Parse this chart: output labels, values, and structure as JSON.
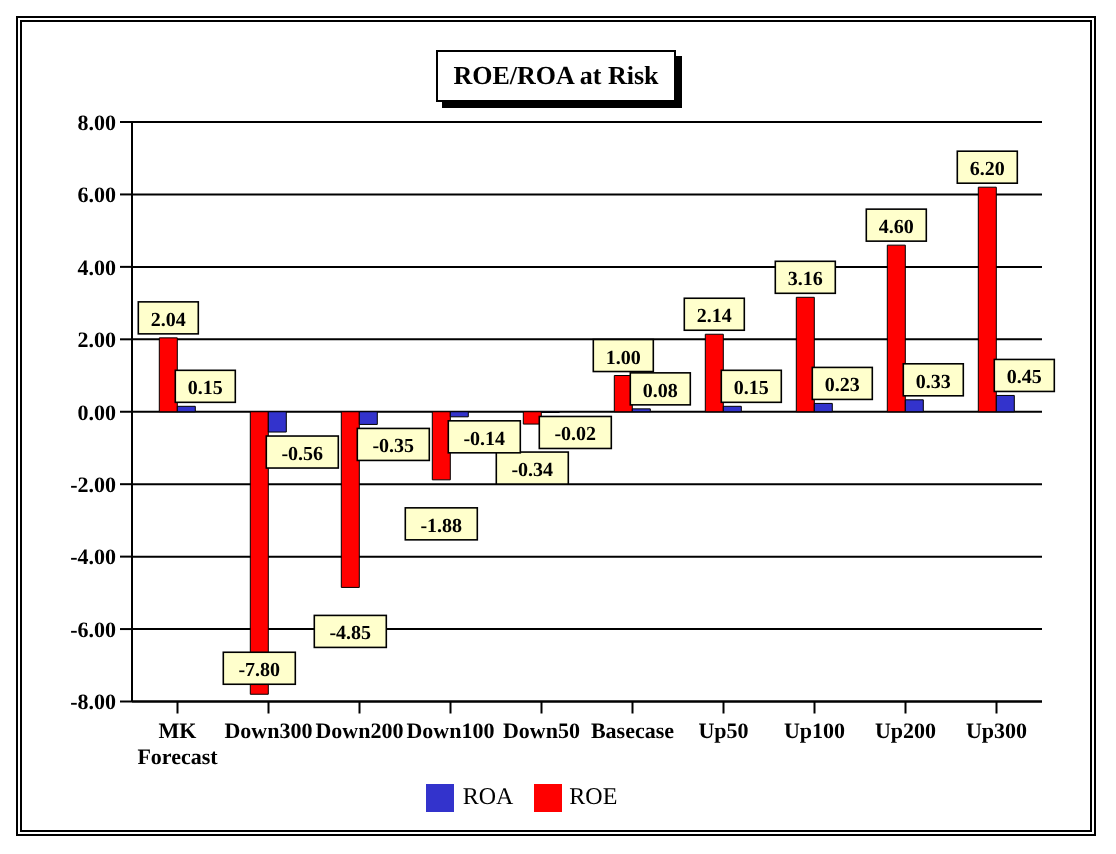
{
  "chart_data": {
    "type": "bar",
    "title": "ROE/ROA at Risk",
    "categories": [
      "MK Forecast",
      "Down300",
      "Down200",
      "Down100",
      "Down50",
      "Basecase",
      "Up50",
      "Up100",
      "Up200",
      "Up300"
    ],
    "series": [
      {
        "name": "ROE",
        "color": "#ff0000",
        "values": [
          2.04,
          -7.8,
          -4.85,
          -1.88,
          -0.34,
          1.0,
          2.14,
          3.16,
          4.6,
          6.2
        ],
        "value_labels": [
          "2.04",
          "-7.80",
          "-4.85",
          "-1.88",
          "-0.34",
          "1.00",
          "2.14",
          "3.16",
          "4.60",
          "6.20"
        ]
      },
      {
        "name": "ROA",
        "color": "#3333cc",
        "values": [
          0.15,
          -0.56,
          -0.35,
          -0.14,
          -0.02,
          0.08,
          0.15,
          0.23,
          0.33,
          0.45
        ],
        "value_labels": [
          "0.15",
          "-0.56",
          "-0.35",
          "-0.14",
          "-0.02",
          "0.08",
          "0.15",
          "0.23",
          "0.33",
          "0.45"
        ]
      }
    ],
    "ylim": [
      -8,
      8
    ],
    "yticks": [
      {
        "value": -8,
        "label": "-8.00"
      },
      {
        "value": -6,
        "label": "-6.00"
      },
      {
        "value": -4,
        "label": "-4.00"
      },
      {
        "value": -2,
        "label": "-2.00"
      },
      {
        "value": 0,
        "label": "0.00"
      },
      {
        "value": 2,
        "label": "2.00"
      },
      {
        "value": 4,
        "label": "4.00"
      },
      {
        "value": 6,
        "label": "6.00"
      },
      {
        "value": 8,
        "label": "8.00"
      }
    ],
    "grid": "y",
    "legend": "bottom"
  }
}
